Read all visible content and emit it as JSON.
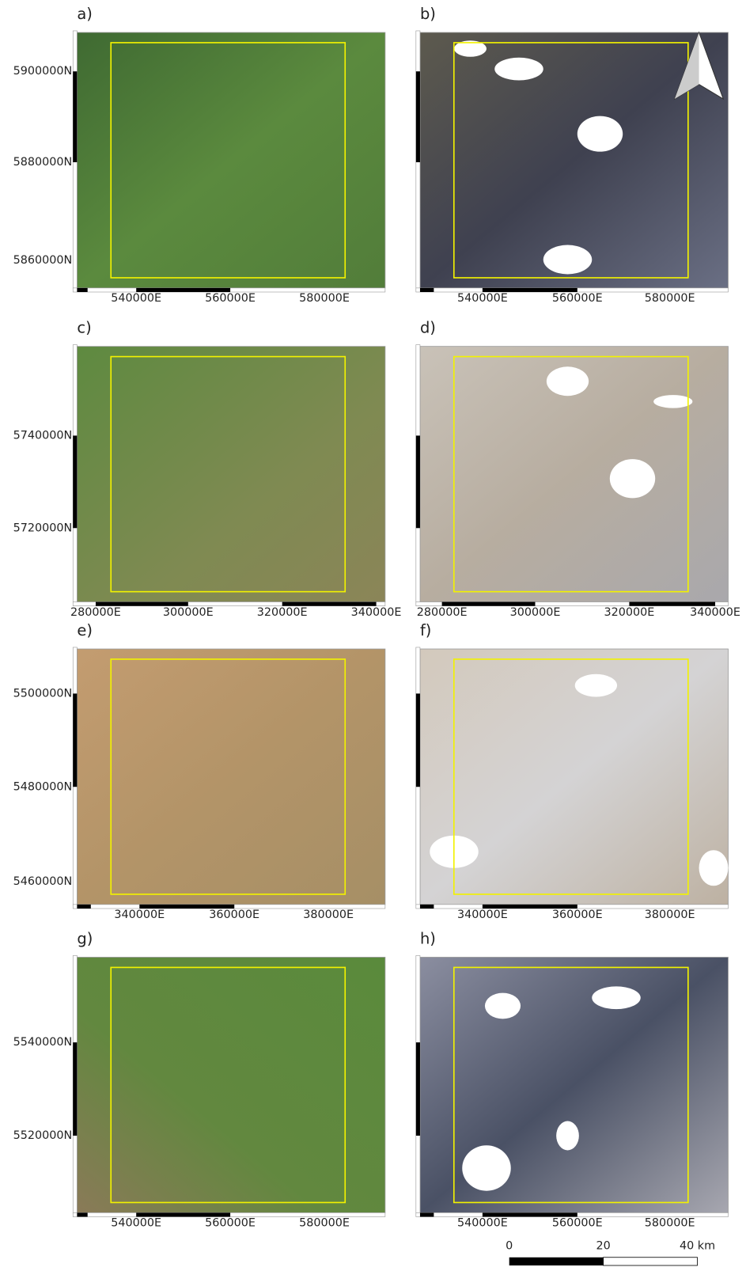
{
  "panels": [
    {
      "label": "a)",
      "x_labels": [
        "540000E",
        "560000E",
        "580000E"
      ],
      "y_labels": [
        "5900000N",
        "5880000N",
        "5860000N"
      ]
    },
    {
      "label": "b)",
      "x_labels": [
        "540000E",
        "560000E",
        "580000E"
      ]
    },
    {
      "label": "c)",
      "x_labels": [
        "280000E",
        "300000E",
        "320000E",
        "340000E"
      ],
      "y_labels": [
        "5740000N",
        "5720000N"
      ]
    },
    {
      "label": "d)",
      "x_labels": [
        "280000E",
        "300000E",
        "320000E",
        "340000E"
      ]
    },
    {
      "label": "e)",
      "x_labels": [
        "340000E",
        "360000E",
        "380000E"
      ],
      "y_labels": [
        "5500000N",
        "5480000N",
        "5460000N"
      ]
    },
    {
      "label": "f)",
      "x_labels": [
        "340000E",
        "360000E",
        "380000E"
      ]
    },
    {
      "label": "g)",
      "x_labels": [
        "540000E",
        "560000E",
        "580000E"
      ],
      "y_labels": [
        "5540000N",
        "5520000N"
      ]
    },
    {
      "label": "h)",
      "x_labels": [
        "540000E",
        "560000E",
        "580000E"
      ]
    }
  ],
  "scale_bar": {
    "labels": [
      "0",
      "20",
      "40 km"
    ]
  }
}
